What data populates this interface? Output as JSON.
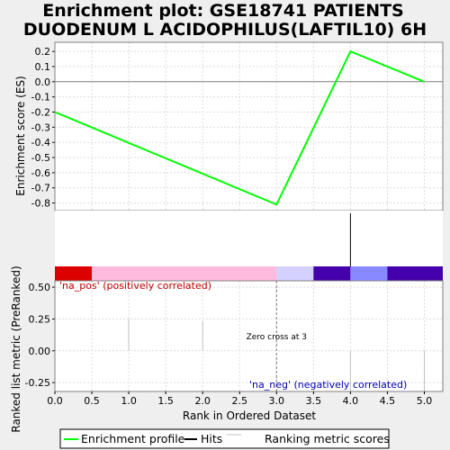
{
  "title_line1": "Enrichment plot: GSE18741 PATIENTS",
  "title_line2": "DUODENUM L ACIDOPHILUS(LAFTIL10) 6H",
  "colors": {
    "enrichment": "#00ff00",
    "hits": "#000000",
    "ranking": "#c0c0c0",
    "grid": "#dcdcdc",
    "zero_line": "#808080",
    "pos_label": "#c00000",
    "neg_label": "#0000b0",
    "crossing_line": "#808080"
  },
  "chart_data": {
    "type": "line",
    "top_panel": {
      "ylabel": "Enrichment score (ES)",
      "ylim": [
        -0.85,
        0.26
      ],
      "yticks": [
        0.2,
        0.1,
        0.0,
        -0.1,
        -0.2,
        -0.3,
        -0.4,
        -0.5,
        -0.6,
        -0.7,
        -0.8
      ],
      "ytick_labels": [
        "0.2",
        "0.1",
        "0.0",
        "-0.1",
        "-0.2",
        "-0.3",
        "-0.4",
        "-0.5",
        "-0.6",
        "-0.7",
        "-0.8"
      ],
      "series": [
        {
          "name": "Enrichment profile",
          "x": [
            0,
            3,
            4,
            5
          ],
          "y": [
            -0.2,
            -0.81,
            0.2,
            0.0
          ]
        }
      ]
    },
    "hits_panel": {
      "hits_x": [
        4
      ]
    },
    "heat_bar": {
      "segments": [
        {
          "x0": 0.0,
          "x1": 0.5,
          "color": "#dd0000"
        },
        {
          "x0": 0.5,
          "x1": 3.0,
          "color": "#ffbbdd"
        },
        {
          "x0": 3.0,
          "x1": 3.5,
          "color": "#d4d0ff"
        },
        {
          "x0": 3.5,
          "x1": 4.0,
          "color": "#4400aa"
        },
        {
          "x0": 4.0,
          "x1": 4.5,
          "color": "#8888ff"
        },
        {
          "x0": 4.5,
          "x1": 5.25,
          "color": "#4400aa"
        }
      ]
    },
    "bottom_panel": {
      "ylabel": "Ranked list metric (PreRanked)",
      "ylim": [
        -0.32,
        0.55
      ],
      "yticks": [
        0.5,
        0.25,
        0.0,
        -0.25
      ],
      "ytick_labels": [
        "0.50",
        "0.25",
        "0.00",
        "-0.25"
      ],
      "ranking_bars": [
        {
          "x": 1,
          "value": 0.25
        },
        {
          "x": 2,
          "value": 0.23
        },
        {
          "x": 4,
          "value": -0.32
        },
        {
          "x": 5,
          "value": -0.32
        }
      ],
      "pos_label": "'na_pos' (positively correlated)",
      "neg_label": "'na_neg' (negatively correlated)",
      "zero_cross_label": "Zero cross at 3",
      "zero_cross_x": 3
    },
    "xaxis": {
      "xlabel": "Rank in Ordered Dataset",
      "xlim": [
        0,
        5.25
      ],
      "xticks": [
        0,
        0.5,
        1,
        1.5,
        2,
        2.5,
        3,
        3.5,
        4,
        4.5,
        5
      ],
      "xtick_labels": [
        "0.0",
        "0.5",
        "1.0",
        "1.5",
        "2.0",
        "2.5",
        "3.0",
        "3.5",
        "4.0",
        "4.5",
        "5.0"
      ]
    },
    "legend": {
      "placement": "bottom",
      "entries": [
        {
          "label": "Enrichment profile",
          "kind": "line",
          "color": "#00ff00"
        },
        {
          "label": "Hits",
          "kind": "line",
          "color": "#000000"
        },
        {
          "label": "Ranking metric scores",
          "kind": "line",
          "color": "#c0c0c0"
        }
      ]
    }
  }
}
